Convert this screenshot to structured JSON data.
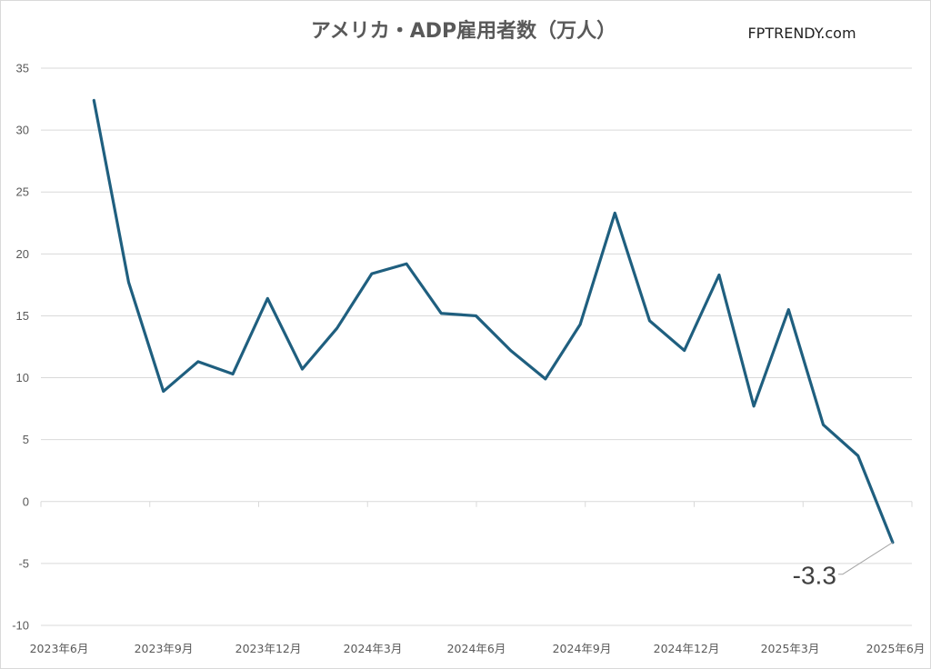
{
  "chart_data": {
    "type": "line",
    "title": "アメリカ・ADP雇用者数（万人）",
    "watermark": "FPTRENDY.com",
    "xlabel": "",
    "ylabel": "",
    "ylim": [
      -10,
      35
    ],
    "yticks": [
      35,
      30,
      25,
      20,
      15,
      10,
      5,
      0,
      -5,
      -10
    ],
    "x_tick_labels": [
      {
        "label": "2023年6月",
        "index": 0
      },
      {
        "label": "2023年9月",
        "index": 3
      },
      {
        "label": "2023年12月",
        "index": 6
      },
      {
        "label": "2024年3月",
        "index": 9
      },
      {
        "label": "2024年6月",
        "index": 12
      },
      {
        "label": "2024年9月",
        "index": 15
      },
      {
        "label": "2024年12月",
        "index": 18
      },
      {
        "label": "2025年3月",
        "index": 21
      },
      {
        "label": "2025年6月",
        "index": 24
      }
    ],
    "series": [
      {
        "color": "#1f5f7f",
        "values": [
          32.4,
          17.7,
          8.9,
          11.3,
          10.3,
          16.4,
          10.7,
          14.0,
          18.4,
          19.2,
          15.2,
          15.0,
          12.2,
          9.9,
          14.3,
          23.3,
          14.6,
          12.2,
          18.3,
          7.7,
          15.5,
          6.2,
          3.7,
          -3.3
        ]
      }
    ],
    "annotations": [
      {
        "text": "-3.3",
        "point_index": 23
      }
    ],
    "grid": true,
    "legend": "none"
  }
}
